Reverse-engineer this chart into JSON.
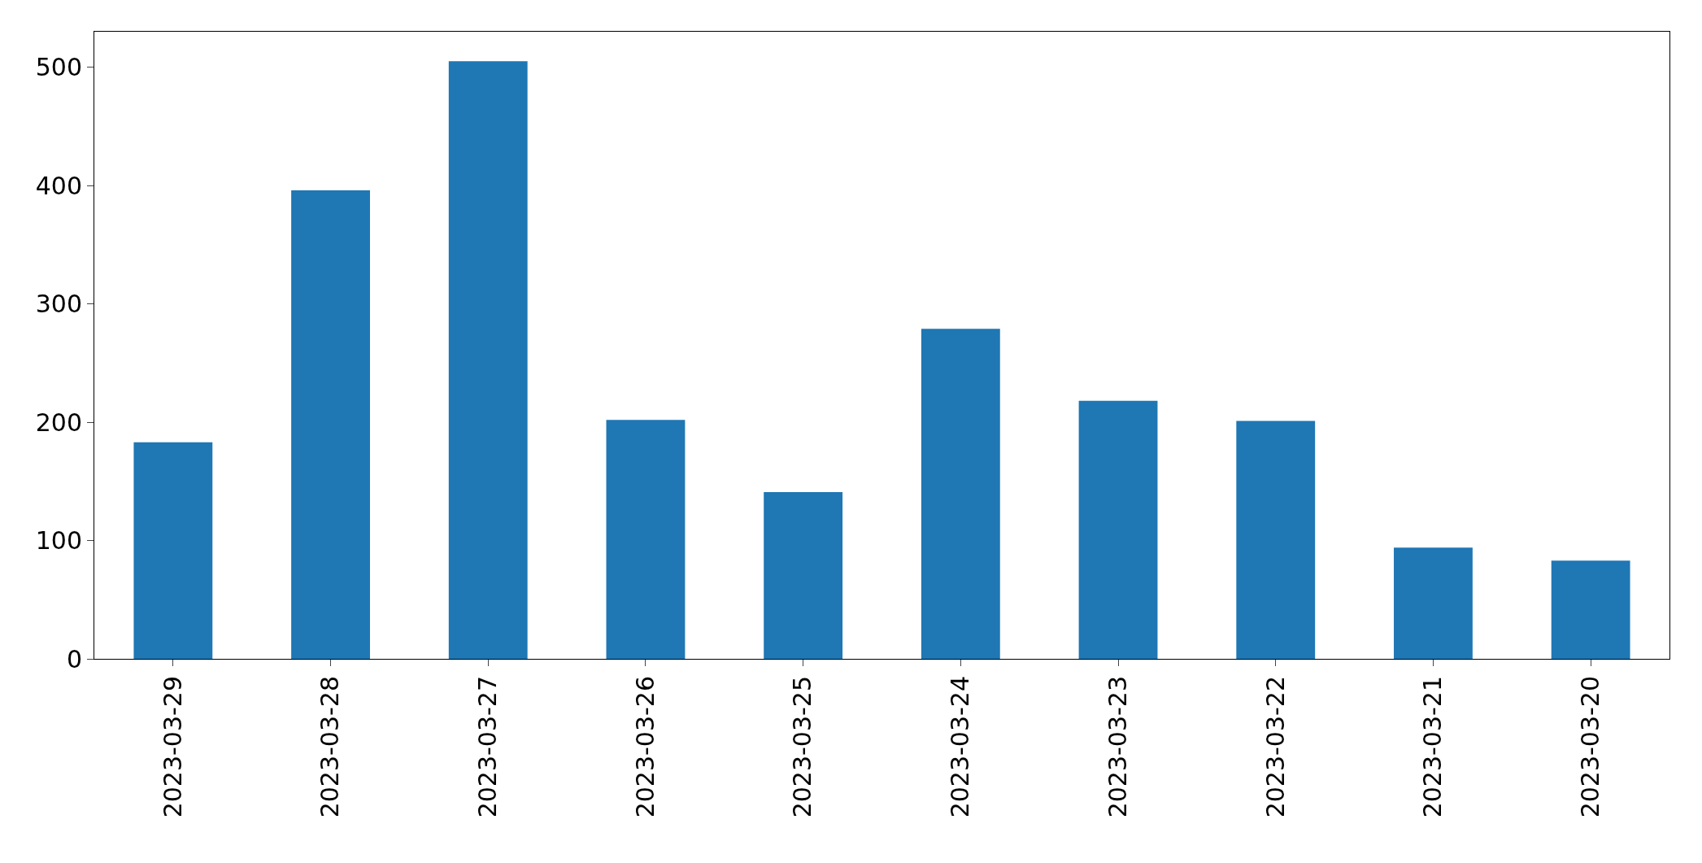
{
  "chart_data": {
    "type": "bar",
    "categories": [
      "2023-03-29",
      "2023-03-28",
      "2023-03-27",
      "2023-03-26",
      "2023-03-25",
      "2023-03-24",
      "2023-03-23",
      "2023-03-22",
      "2023-03-21",
      "2023-03-20"
    ],
    "values": [
      183,
      396,
      505,
      202,
      141,
      279,
      218,
      201,
      94,
      83
    ],
    "color": "#1f77b4",
    "ylim": [
      0,
      530
    ],
    "yticks": [
      0,
      100,
      200,
      300,
      400,
      500
    ],
    "grid": false,
    "legend": false
  }
}
